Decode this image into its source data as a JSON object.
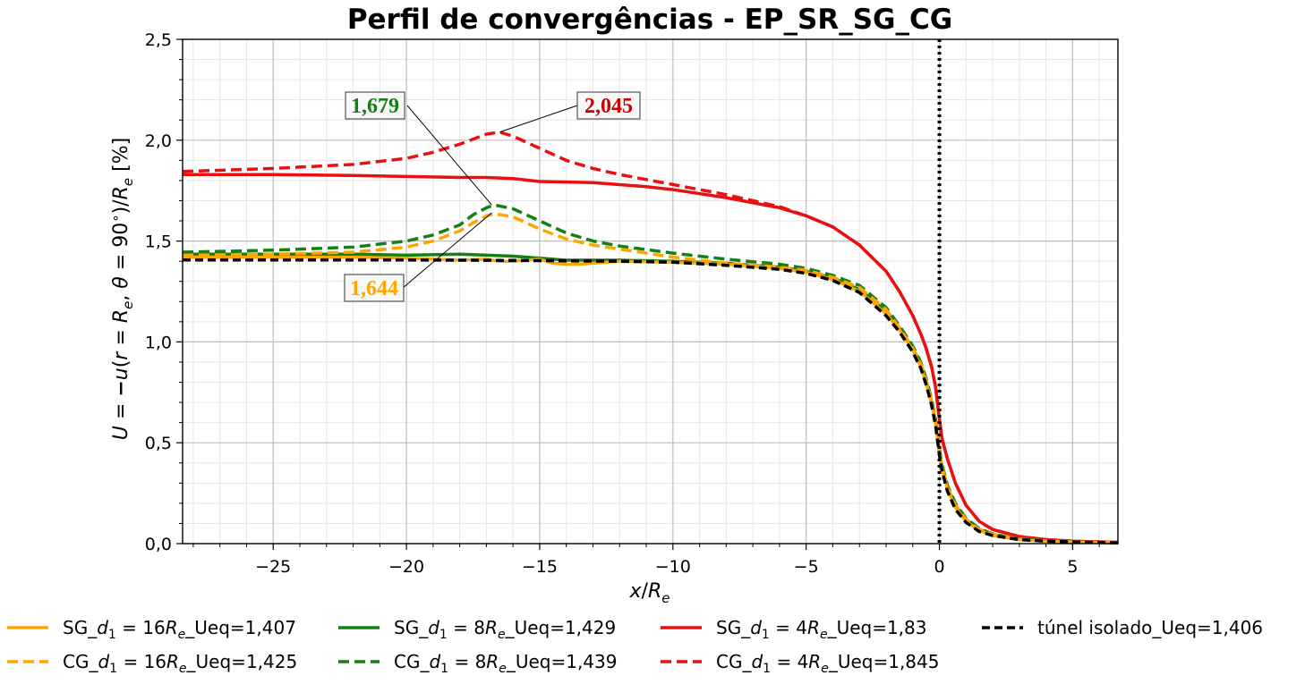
{
  "chart_data": {
    "type": "line",
    "title": "Perfil de convergências - EP_SR_SG_CG",
    "xlabel": "x/R_e",
    "ylabel": "U = −u(r = R_e, θ = 90°)/R_e [%]",
    "xlim": [
      -28.4,
      6.7
    ],
    "ylim": [
      0,
      2.5
    ],
    "xticks": [
      -25,
      -20,
      -15,
      -10,
      -5,
      0,
      5
    ],
    "xtick_labels": [
      "−25",
      "−20",
      "−15",
      "−10",
      "−5",
      "0",
      "5"
    ],
    "yticks": [
      0,
      0.5,
      1.0,
      1.5,
      2.0,
      2.5
    ],
    "ytick_labels": [
      "0,0",
      "0,5",
      "1,0",
      "1,5",
      "2,0",
      "2,5"
    ],
    "grid": true,
    "minor_grid": true,
    "vline_x": 0,
    "legend_position": "bottom",
    "series": [
      {
        "name": "SG_d_1 = 16R_e_Ueq=1,407",
        "color": "#FFA500",
        "style": "solid",
        "x": [
          -28.4,
          -25,
          -22,
          -20,
          -19,
          -18,
          -17,
          -16.5,
          -16,
          -15,
          -14.5,
          -14,
          -13.5,
          -13,
          -12,
          -10,
          -8,
          -6,
          -5,
          -4,
          -3,
          -2,
          -1.5,
          -1,
          -0.7,
          -0.5,
          -0.3,
          -0.15,
          0,
          0.1,
          0.3,
          0.6,
          1,
          1.5,
          2,
          3,
          4,
          5,
          6.7
        ],
        "y": [
          1.42,
          1.42,
          1.42,
          1.415,
          1.41,
          1.405,
          1.41,
          1.4,
          1.4,
          1.41,
          1.39,
          1.385,
          1.385,
          1.39,
          1.4,
          1.395,
          1.385,
          1.365,
          1.345,
          1.31,
          1.25,
          1.14,
          1.06,
          0.96,
          0.88,
          0.8,
          0.7,
          0.6,
          0.45,
          0.37,
          0.27,
          0.18,
          0.11,
          0.065,
          0.04,
          0.02,
          0.012,
          0.008,
          0.004
        ]
      },
      {
        "name": "CG_d_1 = 16R_e_Ueq=1,425",
        "color": "#FFA500",
        "style": "dashed",
        "x": [
          -28.4,
          -25,
          -22,
          -20,
          -19,
          -18,
          -17.5,
          -17,
          -16.7,
          -16,
          -15,
          -14,
          -13,
          -12,
          -10,
          -8,
          -6,
          -5,
          -4,
          -3,
          -2,
          -1.5,
          -1,
          -0.7,
          -0.5,
          -0.3,
          -0.15,
          0,
          0.1,
          0.3,
          0.6,
          1,
          1.5,
          2,
          3,
          4,
          5,
          6.7
        ],
        "y": [
          1.43,
          1.435,
          1.445,
          1.47,
          1.5,
          1.55,
          1.59,
          1.625,
          1.635,
          1.62,
          1.56,
          1.51,
          1.48,
          1.46,
          1.42,
          1.39,
          1.37,
          1.355,
          1.32,
          1.27,
          1.16,
          1.07,
          0.97,
          0.89,
          0.81,
          0.71,
          0.61,
          0.46,
          0.38,
          0.28,
          0.19,
          0.12,
          0.07,
          0.045,
          0.022,
          0.013,
          0.008,
          0.004
        ]
      },
      {
        "name": "SG_d_1 = 8R_e_Ueq=1,429",
        "color": "#138013",
        "style": "solid",
        "x": [
          -28.4,
          -25,
          -22,
          -20,
          -18,
          -17,
          -16,
          -15,
          -14,
          -13,
          -12,
          -10,
          -8,
          -6,
          -5,
          -4,
          -3,
          -2,
          -1.5,
          -1,
          -0.7,
          -0.5,
          -0.3,
          -0.15,
          0,
          0.1,
          0.3,
          0.6,
          1,
          1.5,
          2,
          3,
          4,
          5,
          6.7
        ],
        "y": [
          1.435,
          1.435,
          1.435,
          1.43,
          1.435,
          1.43,
          1.425,
          1.415,
          1.405,
          1.405,
          1.405,
          1.4,
          1.39,
          1.37,
          1.35,
          1.315,
          1.26,
          1.15,
          1.07,
          0.97,
          0.89,
          0.81,
          0.71,
          0.61,
          0.46,
          0.38,
          0.28,
          0.19,
          0.12,
          0.07,
          0.045,
          0.022,
          0.013,
          0.008,
          0.004
        ]
      },
      {
        "name": "CG_d_1 = 8R_e_Ueq=1,439",
        "color": "#138013",
        "style": "dashed",
        "x": [
          -28.4,
          -25,
          -22,
          -20,
          -19,
          -18,
          -17.5,
          -17,
          -16.7,
          -16,
          -15,
          -14,
          -13,
          -12,
          -10,
          -8,
          -6,
          -5,
          -4,
          -3,
          -2,
          -1.5,
          -1,
          -0.7,
          -0.5,
          -0.3,
          -0.15,
          0,
          0.1,
          0.3,
          0.6,
          1,
          1.5,
          2,
          3,
          4,
          5,
          6.7
        ],
        "y": [
          1.445,
          1.455,
          1.47,
          1.5,
          1.53,
          1.58,
          1.63,
          1.665,
          1.679,
          1.66,
          1.6,
          1.54,
          1.5,
          1.475,
          1.44,
          1.41,
          1.385,
          1.365,
          1.33,
          1.28,
          1.17,
          1.08,
          0.98,
          0.9,
          0.82,
          0.72,
          0.62,
          0.47,
          0.39,
          0.29,
          0.2,
          0.125,
          0.075,
          0.048,
          0.023,
          0.014,
          0.009,
          0.004
        ]
      },
      {
        "name": "SG_d_1 = 4R_e_Ueq=1,83",
        "color": "#E81010",
        "style": "solid",
        "x": [
          -28.4,
          -25,
          -22,
          -20,
          -18,
          -17,
          -16,
          -15,
          -13,
          -11,
          -10,
          -8,
          -6,
          -5,
          -4,
          -3,
          -2,
          -1.5,
          -1,
          -0.7,
          -0.5,
          -0.3,
          -0.15,
          0,
          0.1,
          0.3,
          0.6,
          1,
          1.5,
          2,
          3,
          4,
          5,
          6.7
        ],
        "y": [
          1.83,
          1.83,
          1.825,
          1.82,
          1.815,
          1.815,
          1.81,
          1.795,
          1.79,
          1.77,
          1.755,
          1.715,
          1.665,
          1.625,
          1.57,
          1.48,
          1.35,
          1.25,
          1.13,
          1.04,
          0.97,
          0.88,
          0.78,
          0.62,
          0.52,
          0.42,
          0.3,
          0.19,
          0.11,
          0.07,
          0.035,
          0.02,
          0.012,
          0.006
        ]
      },
      {
        "name": "CG_d_1 = 4R_e_Ueq=1,845",
        "color": "#E81010",
        "style": "dashed",
        "x": [
          -28.4,
          -25,
          -22,
          -20,
          -19,
          -18,
          -17,
          -16.5,
          -16,
          -15,
          -14,
          -13,
          -12,
          -10,
          -8,
          -6,
          -5,
          -4,
          -3,
          -2,
          -1.5,
          -1,
          -0.7,
          -0.5,
          -0.3,
          -0.15,
          0,
          0.1,
          0.3,
          0.6,
          1,
          1.5,
          2,
          3,
          4,
          5,
          6.7
        ],
        "y": [
          1.845,
          1.86,
          1.88,
          1.91,
          1.94,
          1.98,
          2.03,
          2.04,
          2.02,
          1.96,
          1.9,
          1.86,
          1.83,
          1.78,
          1.73,
          1.67,
          1.625,
          1.57,
          1.48,
          1.35,
          1.25,
          1.13,
          1.04,
          0.97,
          0.88,
          0.78,
          0.62,
          0.52,
          0.42,
          0.3,
          0.19,
          0.11,
          0.07,
          0.035,
          0.02,
          0.012,
          0.006
        ]
      },
      {
        "name": "túnel isolado_Ueq=1,406",
        "color": "#000000",
        "style": "dashed",
        "x": [
          -28.4,
          -25,
          -22,
          -20,
          -18,
          -16,
          -14,
          -12,
          -10,
          -8,
          -6,
          -5,
          -4,
          -3,
          -2,
          -1.5,
          -1,
          -0.7,
          -0.5,
          -0.3,
          -0.15,
          0,
          0.1,
          0.3,
          0.6,
          1,
          1.5,
          2,
          3,
          4,
          5,
          6.7
        ],
        "y": [
          1.406,
          1.406,
          1.406,
          1.406,
          1.405,
          1.404,
          1.402,
          1.4,
          1.395,
          1.38,
          1.36,
          1.34,
          1.305,
          1.245,
          1.13,
          1.05,
          0.95,
          0.87,
          0.79,
          0.69,
          0.59,
          0.44,
          0.36,
          0.26,
          0.17,
          0.105,
          0.06,
          0.04,
          0.02,
          0.012,
          0.008,
          0.004
        ]
      }
    ],
    "annotations": [
      {
        "text": "1,679",
        "color": "#138013",
        "point_x": -16.8,
        "point_y": 1.679
      },
      {
        "text": "2,045",
        "color": "#CC0000",
        "point_x": -16.5,
        "point_y": 2.04
      },
      {
        "text": "1,644",
        "color": "#FFA500",
        "point_x": -16.8,
        "point_y": 1.64
      }
    ],
    "legend": [
      {
        "prefix": "SG_",
        "sub": "1",
        "middle": " = 16",
        "sub2": "e",
        "suffix": "_Ueq=1,407",
        "color": "#FFA500",
        "style": "solid"
      },
      {
        "prefix": "SG_",
        "sub": "1",
        "middle": " = 8",
        "sub2": "e",
        "suffix": "_Ueq=1,429",
        "color": "#138013",
        "style": "solid"
      },
      {
        "prefix": "SG_",
        "sub": "1",
        "middle": " = 4",
        "sub2": "e",
        "suffix": "_Ueq=1,83",
        "color": "#E81010",
        "style": "solid"
      },
      {
        "plain": "túnel isolado_Ueq=1,406",
        "color": "#000000",
        "style": "dashed"
      },
      {
        "prefix": "CG_",
        "sub": "1",
        "middle": " = 16",
        "sub2": "e",
        "suffix": "_Ueq=1,425",
        "color": "#FFA500",
        "style": "dashed"
      },
      {
        "prefix": "CG_",
        "sub": "1",
        "middle": " = 8",
        "sub2": "e",
        "suffix": "_Ueq=1,439",
        "color": "#138013",
        "style": "dashed"
      },
      {
        "prefix": "CG_",
        "sub": "1",
        "middle": " = 4",
        "sub2": "e",
        "suffix": "_Ueq=1,845",
        "color": "#E81010",
        "style": "dashed"
      }
    ]
  }
}
